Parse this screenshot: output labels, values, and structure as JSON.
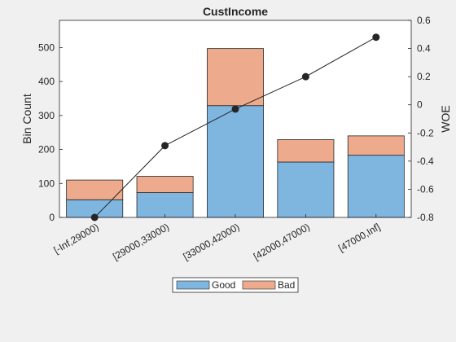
{
  "chart_data": {
    "type": "bar",
    "title": "CustIncome",
    "categories": [
      "[-Inf,29000)",
      "[29000,33000)",
      "[33000,42000)",
      "[42000,47000)",
      "[47000,Inf]"
    ],
    "stacked": true,
    "series": [
      {
        "name": "Good",
        "values": [
          52,
          73,
          329,
          163,
          183
        ],
        "color": "#7eb6e0"
      },
      {
        "name": "Bad",
        "values": [
          58,
          48,
          168,
          66,
          57
        ],
        "color": "#edaa8c"
      }
    ],
    "line_series": {
      "values": [
        -0.8,
        -0.29,
        -0.03,
        0.2,
        0.48
      ],
      "color": "#262626",
      "axis": "right"
    },
    "ylabel": "Bin Count",
    "ylim": [
      0,
      580
    ],
    "yticks": [
      0,
      100,
      200,
      300,
      400,
      500
    ],
    "y2label": "WOE",
    "y2lim": [
      -0.8,
      0.6
    ],
    "y2ticks": [
      -0.8,
      -0.6,
      -0.4,
      -0.2,
      0,
      0.2,
      0.4,
      0.6
    ],
    "y2tick_labels": [
      "-0.8",
      "-0.6",
      "-0.4",
      "-0.2",
      "0",
      "0.2",
      "0.4",
      "0.6"
    ],
    "legend_placement": "bottom-center",
    "grid": false
  }
}
